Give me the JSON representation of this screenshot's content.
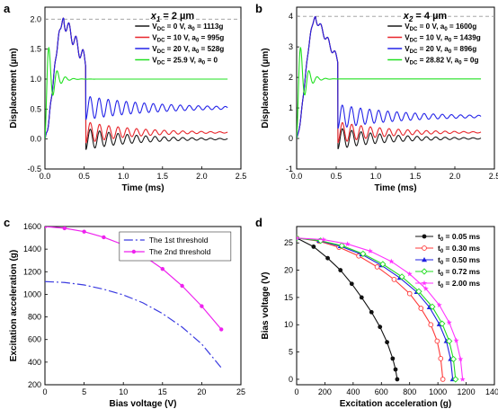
{
  "chart_data": [
    {
      "panel": "a",
      "type": "line",
      "annotation": "x1 = 2 µm",
      "annotation_main": "x",
      "annotation_sub": "1",
      "annotation_rest": " = 2 µm",
      "xlabel": "Time (ms)",
      "ylabel": "Displacement (µm)",
      "xlim": [
        0,
        2.5
      ],
      "ylim": [
        -0.5,
        2.2
      ],
      "xticks": [
        0.0,
        0.5,
        1.0,
        1.5,
        2.0,
        2.5
      ],
      "xtick_labels": [
        "0.0",
        "0.5",
        "1.0",
        "1.5",
        "2.0",
        "2.5"
      ],
      "yticks": [
        -0.5,
        0.0,
        0.5,
        1.0,
        1.5,
        2.0
      ],
      "ytick_labels": [
        "-0.5",
        "0.0",
        "0.5",
        "1.0",
        "1.5",
        "2.0"
      ],
      "reference_line_y": 2.0,
      "x_end": 2.33,
      "series": [
        {
          "name": "VDC = 0 V, a0 = 1113g",
          "label_v": "V",
          "label_sub": "DC",
          "label_mid": " = 0 V, a",
          "label_sub2": "0",
          "label_end": " = 1113g",
          "color": "#1a1a1a",
          "steady": 0.0,
          "amp0": 0.18,
          "decay": 1.6,
          "period": 0.118
        },
        {
          "name": "VDC = 10 V, a0 = 995g",
          "label_v": "V",
          "label_sub": "DC",
          "label_mid": " = 10 V, a",
          "label_sub2": "0",
          "label_end": " = 995g",
          "color": "#e8262b",
          "steady": 0.11,
          "amp0": 0.18,
          "decay": 1.6,
          "period": 0.118
        },
        {
          "name": "VDC = 20 V, a0 = 528g",
          "label_v": "V",
          "label_sub": "DC",
          "label_mid": " = 20 V, a",
          "label_sub2": "0",
          "label_end": " = 528g",
          "color": "#2424e8",
          "steady": 0.52,
          "amp0": 0.2,
          "decay": 1.2,
          "period": 0.115
        },
        {
          "name": "VDC = 25.9 V, a0 = 0",
          "label_v": "V",
          "label_sub": "DC",
          "label_mid": " = 25.9 V, a",
          "label_sub2": "0",
          "label_end": " = 0",
          "color": "#22e022",
          "steady": 1.0,
          "amp0": 0.95,
          "decay": 0.55,
          "period": 0.105
        }
      ],
      "peak": {
        "x": 0.24,
        "y": 1.98
      }
    },
    {
      "panel": "b",
      "type": "line",
      "annotation": "x2 = 4 µm",
      "annotation_main": "x",
      "annotation_sub": "2",
      "annotation_rest": " = 4 µm",
      "xlabel": "Time (ms)",
      "ylabel": "Displacement (µm)",
      "xlim": [
        0,
        2.5
      ],
      "ylim": [
        -1,
        4.3
      ],
      "xticks": [
        0.0,
        0.5,
        1.0,
        1.5,
        2.0,
        2.5
      ],
      "xtick_labels": [
        "0.0",
        "0.5",
        "1.0",
        "1.5",
        "2.0",
        "2.5"
      ],
      "yticks": [
        -1,
        0,
        1,
        2,
        3,
        4
      ],
      "ytick_labels": [
        "-1",
        "0",
        "1",
        "2",
        "3",
        "4"
      ],
      "reference_line_y": 4.0,
      "x_end": 2.33,
      "series": [
        {
          "name": "VDC = 0 V, a0 = 1600g",
          "label_v": "V",
          "label_sub": "DC",
          "label_mid": " = 0 V, a",
          "label_sub2": "0",
          "label_end": " = 1600g",
          "color": "#1a1a1a",
          "steady": 0.0,
          "amp0": 0.35,
          "decay": 1.6,
          "period": 0.118
        },
        {
          "name": "VDC = 10 V, a0 = 1439g",
          "label_v": "V",
          "label_sub": "DC",
          "label_mid": " = 10 V, a",
          "label_sub2": "0",
          "label_end": " = 1439g",
          "color": "#e8262b",
          "steady": 0.2,
          "amp0": 0.35,
          "decay": 1.6,
          "period": 0.118
        },
        {
          "name": "VDC = 20 V, a0 = 896g",
          "label_v": "V",
          "label_sub": "DC",
          "label_mid": " = 20 V, a",
          "label_sub2": "0",
          "label_end": " = 896g",
          "color": "#2424e8",
          "steady": 0.72,
          "amp0": 0.4,
          "decay": 1.3,
          "period": 0.115
        },
        {
          "name": "VDC = 28.82 V, a0 = 0g",
          "label_v": "V",
          "label_sub": "DC",
          "label_mid": " = 28.82 V, a",
          "label_sub2": "0",
          "label_end": " = 0g",
          "color": "#22e022",
          "steady": 1.95,
          "amp0": 1.9,
          "decay": 0.55,
          "period": 0.105
        }
      ],
      "peak": {
        "x": 0.24,
        "y": 3.95
      }
    },
    {
      "panel": "c",
      "type": "line",
      "xlabel": "Bias voltage (V)",
      "ylabel": "Excitation acceleration (g)",
      "xlim": [
        0,
        25
      ],
      "ylim": [
        200,
        1600
      ],
      "xticks": [
        0,
        5,
        10,
        15,
        20,
        25
      ],
      "xtick_labels": [
        "0",
        "5",
        "10",
        "15",
        "20",
        "25"
      ],
      "yticks": [
        200,
        400,
        600,
        800,
        1000,
        1200,
        1400,
        1600
      ],
      "ytick_labels": [
        "200",
        "400",
        "600",
        "800",
        "1000",
        "1200",
        "1400",
        "1600"
      ],
      "legend_position": "top-right",
      "series": [
        {
          "name": "The 1st threshold",
          "color": "#3a3ae0",
          "dash": "10,3,2,3",
          "x": [
            0,
            2.5,
            5,
            7.5,
            10,
            12.5,
            15,
            17.5,
            20,
            22.5
          ],
          "y": [
            1113,
            1105,
            1083,
            1045,
            995,
            925,
            830,
            710,
            560,
            350
          ]
        },
        {
          "name": "The 2nd threshold",
          "color": "#ee22ee",
          "dash": "",
          "x": [
            0,
            2.5,
            5,
            7.5,
            10,
            12.5,
            15,
            17.5,
            20,
            22.5
          ],
          "y": [
            1600,
            1585,
            1555,
            1505,
            1439,
            1345,
            1225,
            1075,
            895,
            690
          ]
        }
      ]
    },
    {
      "panel": "d",
      "type": "line",
      "xlabel": "Excitation acceleration (g)",
      "ylabel": "Bias voltage (V)",
      "xlim": [
        0,
        1400
      ],
      "ylim": [
        -1,
        28
      ],
      "xticks": [
        0,
        200,
        400,
        600,
        800,
        1000,
        1200,
        1400
      ],
      "xtick_labels": [
        "0",
        "200",
        "400",
        "600",
        "800",
        "1000",
        "1200",
        "1400"
      ],
      "yticks": [
        0,
        5,
        10,
        15,
        20,
        25
      ],
      "ytick_labels": [
        "0",
        "5",
        "10",
        "15",
        "20",
        "25"
      ],
      "legend_position": "top-right",
      "series": [
        {
          "name": "t0 = 0.05 ms",
          "label_t": "t",
          "label_sub": "0",
          "label_rest": " = 0.05 ms",
          "color": "#111111",
          "marker": "circle-filled",
          "x": [
            0,
            120,
            220,
            310,
            390,
            460,
            530,
            590,
            640,
            680,
            700,
            712
          ],
          "y": [
            25.9,
            24.3,
            22.2,
            20.0,
            17.5,
            15.0,
            12.3,
            9.6,
            6.8,
            3.8,
            1.8,
            0
          ]
        },
        {
          "name": "t0 = 0.30 ms",
          "label_t": "t",
          "label_sub": "0",
          "label_rest": " = 0.30 ms",
          "color": "#ff3a3a",
          "marker": "circle-open",
          "x": [
            0,
            160,
            300,
            440,
            570,
            690,
            800,
            880,
            950,
            995,
            1020,
            1035
          ],
          "y": [
            25.9,
            25.3,
            24.2,
            22.6,
            20.6,
            18.3,
            15.7,
            13.0,
            10.0,
            7.0,
            3.8,
            0
          ]
        },
        {
          "name": "t0 = 0.50 ms",
          "label_t": "t",
          "label_sub": "0",
          "label_rest": " = 0.50 ms",
          "color": "#2020e0",
          "marker": "triangle-filled",
          "x": [
            0,
            160,
            310,
            460,
            600,
            730,
            850,
            940,
            1010,
            1060,
            1090,
            1105
          ],
          "y": [
            25.9,
            25.4,
            24.4,
            22.9,
            20.9,
            18.6,
            16.0,
            13.2,
            10.1,
            7.0,
            3.7,
            0
          ]
        },
        {
          "name": "t0 = 0.72 ms",
          "label_t": "t",
          "label_sub": "0",
          "label_rest": " = 0.72 ms",
          "color": "#22dd22",
          "marker": "diamond-open",
          "x": [
            0,
            170,
            320,
            470,
            610,
            745,
            865,
            960,
            1030,
            1080,
            1110,
            1125
          ],
          "y": [
            25.9,
            25.4,
            24.5,
            23.0,
            21.1,
            18.8,
            16.1,
            13.3,
            10.2,
            7.0,
            3.7,
            0
          ]
        },
        {
          "name": "t0 = 2.00 ms",
          "label_t": "t",
          "label_sub": "0",
          "label_rest": " = 2.00 ms",
          "color": "#ff33ff",
          "marker": "star",
          "x": [
            0,
            190,
            360,
            520,
            670,
            800,
            915,
            1010,
            1080,
            1130,
            1160,
            1175
          ],
          "y": [
            25.9,
            25.6,
            24.8,
            23.5,
            21.6,
            19.3,
            16.6,
            13.6,
            10.4,
            7.1,
            3.7,
            0
          ]
        }
      ]
    }
  ],
  "panel_letters": [
    "a",
    "b",
    "c",
    "d"
  ]
}
